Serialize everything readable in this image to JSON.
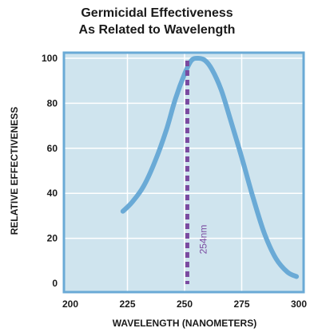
{
  "chart_data": {
    "type": "line",
    "title_lines": [
      "Germicidal Effectiveness",
      "As Related to Wavelength"
    ],
    "xlabel": "WAVELENGTH (NANOMETERS)",
    "ylabel": "RELATIVE  EFFECTIVENESS",
    "xlim": [
      200,
      300
    ],
    "ylim": [
      0,
      105
    ],
    "x_ticks": [
      "200",
      "225",
      "250",
      "275",
      "300"
    ],
    "y_ticks": [
      "0",
      "20",
      "40",
      "60",
      "80",
      "100"
    ],
    "grid": true,
    "series": [
      {
        "x": [
          223,
          227,
          232,
          237,
          242,
          246,
          250,
          253,
          256,
          259,
          262,
          266,
          270,
          275,
          280,
          285,
          290,
          295,
          299
        ],
        "y": [
          32,
          36,
          43,
          54,
          68,
          82,
          93,
          99,
          100,
          99,
          95,
          86,
          73,
          56,
          38,
          22,
          11,
          5,
          3
        ]
      }
    ],
    "annotation": {
      "x": 254,
      "label": "254nm"
    },
    "colors": {
      "plot_background": "#cfe4ee",
      "frame": "#6aaad6",
      "gridline": "#ffffff",
      "curve": "#6aaad6",
      "marker_line": "#7a4aa0"
    }
  }
}
